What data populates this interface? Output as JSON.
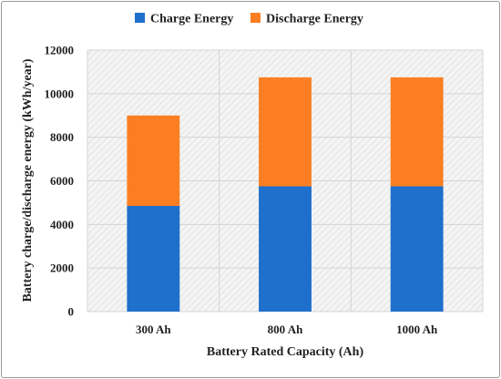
{
  "chart_data": {
    "type": "bar",
    "stacked": true,
    "categories": [
      "300 Ah",
      "800 Ah",
      "1000 Ah"
    ],
    "series": [
      {
        "name": "Charge Energy",
        "values": [
          4850,
          5750,
          5750
        ],
        "color": "#1f6fcc"
      },
      {
        "name": "Discharge Energy",
        "values": [
          4150,
          5000,
          5000
        ],
        "color": "#fb7f22"
      }
    ],
    "xlabel": "Battery Rated Capacity (Ah)",
    "ylabel": "Battery charge/discharge energy (kWh/year)",
    "ylim": [
      0,
      12000
    ],
    "yticks": [
      "0",
      "2000",
      "4000",
      "6000",
      "8000",
      "10000",
      "12000"
    ],
    "grid": true,
    "legend_position": "top"
  }
}
